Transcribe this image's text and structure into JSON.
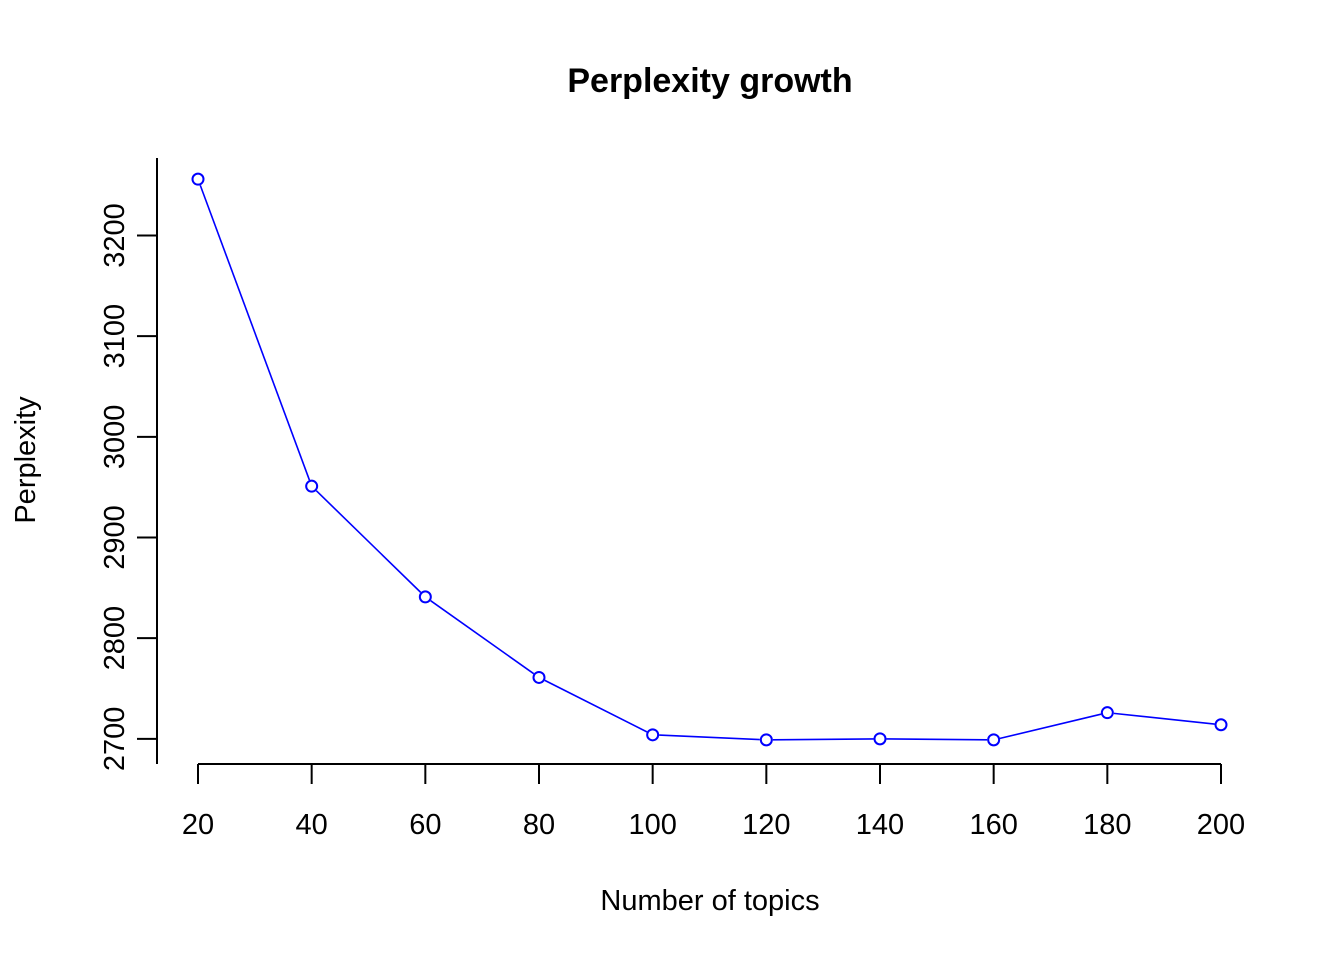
{
  "chart_data": {
    "type": "line",
    "title": "Perplexity growth",
    "xlabel": "Number of topics",
    "ylabel": "Perplexity",
    "x": [
      20,
      40,
      60,
      80,
      100,
      120,
      140,
      160,
      180,
      200
    ],
    "series": [
      {
        "values": [
          3256,
          2951,
          2841,
          2761,
          2704,
          2699,
          2700,
          2699,
          2726,
          2714
        ],
        "color": "#0000ff",
        "marker": "open-circle"
      }
    ],
    "xticks": [
      "20",
      "40",
      "60",
      "80",
      "100",
      "120",
      "140",
      "160",
      "180",
      "200"
    ],
    "yticks": [
      "2700",
      "2800",
      "2900",
      "3000",
      "3100",
      "3200"
    ],
    "xlim": [
      20,
      200
    ],
    "ylim": [
      2677,
      3277
    ],
    "grid": false,
    "legend": "none"
  }
}
